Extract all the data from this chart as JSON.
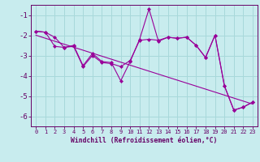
{
  "xlabel": "Windchill (Refroidissement éolien,°C)",
  "background_color": "#c8ecee",
  "line_color": "#990099",
  "grid_color": "#a8d8da",
  "axis_color": "#660066",
  "text_color": "#660066",
  "xlim": [
    -0.5,
    23.5
  ],
  "ylim": [
    -6.5,
    -0.5
  ],
  "yticks": [
    -6,
    -5,
    -4,
    -3,
    -2,
    -1
  ],
  "xticks": [
    0,
    1,
    2,
    3,
    4,
    5,
    6,
    7,
    8,
    9,
    10,
    11,
    12,
    13,
    14,
    15,
    16,
    17,
    18,
    19,
    20,
    21,
    22,
    23
  ],
  "series1": [
    [
      0,
      -1.8
    ],
    [
      1,
      -1.85
    ],
    [
      2,
      -2.1
    ],
    [
      3,
      -2.6
    ],
    [
      4,
      -2.5
    ],
    [
      5,
      -3.5
    ],
    [
      6,
      -2.9
    ],
    [
      7,
      -3.3
    ],
    [
      8,
      -3.35
    ],
    [
      9,
      -4.25
    ],
    [
      10,
      -3.3
    ],
    [
      11,
      -2.2
    ],
    [
      12,
      -0.7
    ],
    [
      13,
      -2.3
    ],
    [
      14,
      -2.1
    ],
    [
      15,
      -2.15
    ],
    [
      16,
      -2.1
    ],
    [
      17,
      -2.5
    ],
    [
      18,
      -3.1
    ],
    [
      19,
      -2.0
    ],
    [
      20,
      -4.5
    ],
    [
      21,
      -5.7
    ],
    [
      22,
      -5.55
    ],
    [
      23,
      -5.3
    ]
  ],
  "series2": [
    [
      0,
      -1.8
    ],
    [
      1,
      -1.85
    ],
    [
      2,
      -2.55
    ],
    [
      3,
      -2.6
    ],
    [
      4,
      -2.55
    ],
    [
      5,
      -3.55
    ],
    [
      6,
      -3.0
    ],
    [
      7,
      -3.35
    ],
    [
      8,
      -3.4
    ],
    [
      9,
      -3.55
    ],
    [
      10,
      -3.25
    ],
    [
      11,
      -2.25
    ],
    [
      12,
      -2.2
    ],
    [
      13,
      -2.25
    ],
    [
      14,
      -2.1
    ],
    [
      15,
      -2.15
    ],
    [
      16,
      -2.1
    ],
    [
      17,
      -2.5
    ],
    [
      18,
      -3.1
    ],
    [
      19,
      -2.0
    ],
    [
      20,
      -4.5
    ],
    [
      21,
      -5.7
    ],
    [
      22,
      -5.55
    ],
    [
      23,
      -5.3
    ]
  ],
  "regression": {
    "x": [
      0,
      23
    ],
    "y": [
      -2.0,
      -5.4
    ]
  }
}
